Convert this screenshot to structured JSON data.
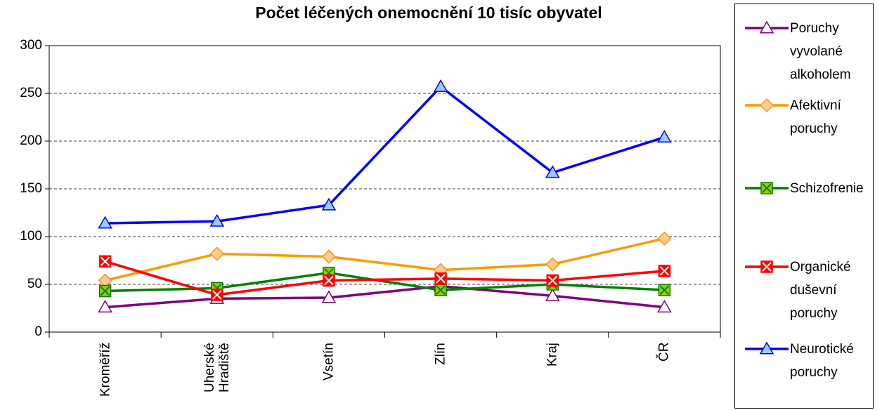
{
  "chart_data": {
    "type": "line",
    "title": "Počet léčených onemocnění 10 tisíc obyvatel",
    "categories": [
      "Kroměříž",
      "Uherské Hradiště",
      "Vsetín",
      "Zlín",
      "Kraj",
      "ČR"
    ],
    "series": [
      {
        "name": "Poruchy vyvolané alkoholem",
        "color": "#800080",
        "marker": "triangle",
        "marker_fill": "#ffffff",
        "values": [
          26,
          35,
          36,
          48,
          38,
          26
        ]
      },
      {
        "name": "Afektivní poruchy",
        "color": "#ff9900",
        "marker": "diamond",
        "marker_fill": "#ffcc99",
        "values": [
          54,
          82,
          79,
          65,
          71,
          98
        ]
      },
      {
        "name": "Schizofrenie",
        "color": "#008000",
        "marker": "xsquare",
        "marker_fill": "#99cc00",
        "values": [
          43,
          46,
          62,
          44,
          50,
          44
        ]
      },
      {
        "name": "Organické duševní poruchy",
        "color": "#ff0000",
        "marker": "xsquare",
        "marker_fill": "#ff0000",
        "values": [
          74,
          39,
          54,
          56,
          54,
          64
        ]
      },
      {
        "name": "Neurotické poruchy",
        "color": "#0000ff",
        "marker": "triangle",
        "marker_fill": "#99ccff",
        "values": [
          114,
          116,
          133,
          257,
          167,
          204
        ]
      }
    ],
    "ylim": [
      0,
      300
    ],
    "yticks": [
      0,
      50,
      100,
      150,
      200,
      250,
      300
    ],
    "grid": true,
    "legend": "right"
  }
}
